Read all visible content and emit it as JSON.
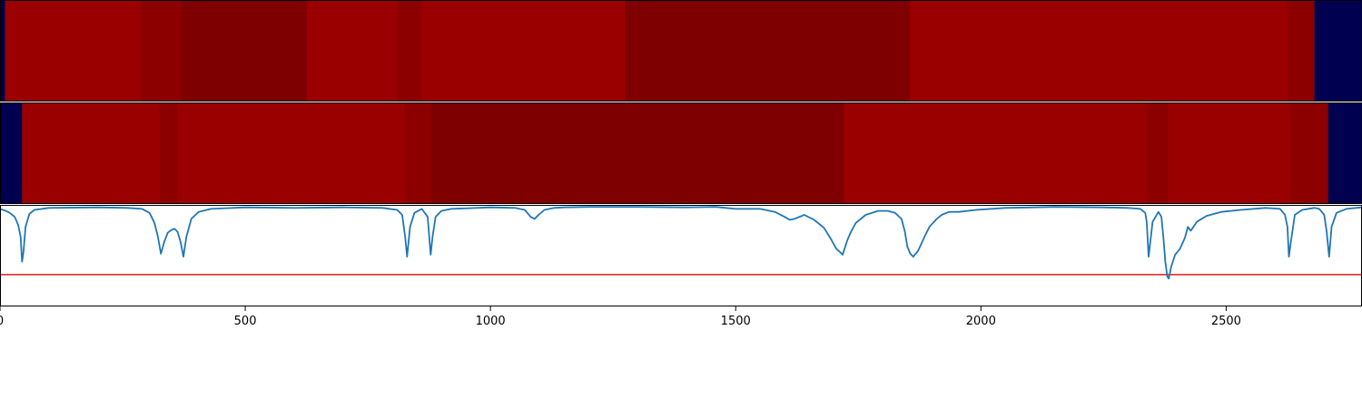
{
  "chart_data": {
    "panels": [
      {
        "type": "heatmap",
        "colormap": "seismic",
        "background_color": "#000050",
        "segments": [
          {
            "start": 0,
            "end": 10,
            "color": "#000050"
          },
          {
            "start": 10,
            "end": 288,
            "color": "#9a0000"
          },
          {
            "start": 288,
            "end": 370,
            "color": "#8c0000"
          },
          {
            "start": 370,
            "end": 625,
            "color": "#7e0000"
          },
          {
            "start": 625,
            "end": 810,
            "color": "#9a0000"
          },
          {
            "start": 810,
            "end": 860,
            "color": "#8c0000"
          },
          {
            "start": 860,
            "end": 1275,
            "color": "#9a0000"
          },
          {
            "start": 1275,
            "end": 1855,
            "color": "#7e0000"
          },
          {
            "start": 1855,
            "end": 2625,
            "color": "#9a0000"
          },
          {
            "start": 2625,
            "end": 2680,
            "color": "#8c0000"
          },
          {
            "start": 2680,
            "end": 2777,
            "color": "#000050"
          }
        ]
      },
      {
        "type": "heatmap",
        "colormap": "seismic",
        "background_color": "#000050",
        "segments": [
          {
            "start": 0,
            "end": 45,
            "color": "#000050"
          },
          {
            "start": 45,
            "end": 325,
            "color": "#9a0000"
          },
          {
            "start": 325,
            "end": 362,
            "color": "#8c0000"
          },
          {
            "start": 362,
            "end": 825,
            "color": "#9a0000"
          },
          {
            "start": 825,
            "end": 880,
            "color": "#8c0000"
          },
          {
            "start": 880,
            "end": 1720,
            "color": "#7e0000"
          },
          {
            "start": 1720,
            "end": 2338,
            "color": "#9a0000"
          },
          {
            "start": 2338,
            "end": 2382,
            "color": "#8c0000"
          },
          {
            "start": 2382,
            "end": 2630,
            "color": "#9a0000"
          },
          {
            "start": 2630,
            "end": 2708,
            "color": "#8c0000"
          },
          {
            "start": 2708,
            "end": 2777,
            "color": "#000050"
          }
        ]
      },
      {
        "type": "line",
        "xlim": [
          0,
          2777
        ],
        "ylim": [
          -1.0,
          0.02
        ],
        "xticks": [
          0,
          500,
          1000,
          1500,
          2000,
          2500
        ],
        "xtick_labels": [
          "0",
          "500",
          "1000",
          "1500",
          "2000",
          "2500"
        ],
        "grid": false,
        "threshold": {
          "y": -0.68,
          "color": "#e41a1c"
        },
        "series": [
          {
            "color": "#1f77b4",
            "x": [
              0,
              12,
              20,
              30,
              37,
              42,
              45,
              48,
              52,
              60,
              70,
              100,
              200,
              260,
              290,
              305,
              315,
              322,
              328,
              335,
              342,
              350,
              356,
              362,
              368,
              374,
              380,
              390,
              405,
              430,
              500,
              600,
              700,
              780,
              810,
              820,
              826,
              830,
              836,
              845,
              860,
              872,
              878,
              882,
              888,
              900,
              920,
              1000,
              1050,
              1070,
              1082,
              1090,
              1098,
              1110,
              1130,
              1150,
              1200,
              1300,
              1400,
              1460,
              1480,
              1500,
              1550,
              1580,
              1600,
              1610,
              1620,
              1640,
              1660,
              1680,
              1695,
              1705,
              1712,
              1718,
              1722,
              1728,
              1735,
              1745,
              1765,
              1790,
              1810,
              1825,
              1838,
              1845,
              1850,
              1856,
              1862,
              1872,
              1885,
              1895,
              1910,
              1920,
              1935,
              1955,
              1990,
              2050,
              2150,
              2250,
              2300,
              2325,
              2335,
              2338,
              2342,
              2350,
              2362,
              2368,
              2372,
              2376,
              2380,
              2383,
              2388,
              2396,
              2406,
              2416,
              2422,
              2428,
              2440,
              2460,
              2490,
              2530,
              2580,
              2610,
              2620,
              2625,
              2628,
              2632,
              2640,
              2655,
              2680,
              2690,
              2700,
              2705,
              2710,
              2715,
              2725,
              2745,
              2777
            ],
            "y": [
              -0.02,
              -0.04,
              -0.06,
              -0.1,
              -0.18,
              -0.3,
              -0.55,
              -0.45,
              -0.2,
              -0.07,
              -0.03,
              -0.01,
              -0.005,
              -0.01,
              -0.02,
              -0.06,
              -0.16,
              -0.3,
              -0.47,
              -0.35,
              -0.26,
              -0.23,
              -0.22,
              -0.25,
              -0.35,
              -0.5,
              -0.3,
              -0.12,
              -0.05,
              -0.02,
              -0.005,
              -0.01,
              -0.005,
              -0.01,
              -0.03,
              -0.08,
              -0.3,
              -0.5,
              -0.2,
              -0.06,
              -0.02,
              -0.1,
              -0.48,
              -0.3,
              -0.1,
              -0.04,
              -0.02,
              -0.005,
              -0.01,
              -0.03,
              -0.1,
              -0.12,
              -0.08,
              -0.03,
              -0.01,
              -0.005,
              0.0,
              0.0,
              -0.005,
              0.0,
              -0.01,
              -0.02,
              -0.02,
              -0.05,
              -0.1,
              -0.13,
              -0.12,
              -0.08,
              -0.13,
              -0.21,
              -0.33,
              -0.42,
              -0.45,
              -0.48,
              -0.42,
              -0.33,
              -0.25,
              -0.16,
              -0.08,
              -0.04,
              -0.04,
              -0.06,
              -0.12,
              -0.25,
              -0.4,
              -0.47,
              -0.5,
              -0.44,
              -0.3,
              -0.2,
              -0.12,
              -0.08,
              -0.05,
              -0.05,
              -0.03,
              -0.01,
              0.0,
              -0.005,
              -0.01,
              -0.02,
              -0.06,
              -0.15,
              -0.5,
              -0.15,
              -0.05,
              -0.1,
              -0.3,
              -0.55,
              -0.7,
              -0.72,
              -0.6,
              -0.48,
              -0.42,
              -0.31,
              -0.2,
              -0.24,
              -0.15,
              -0.09,
              -0.05,
              -0.03,
              -0.01,
              -0.02,
              -0.08,
              -0.2,
              -0.5,
              -0.35,
              -0.08,
              -0.03,
              -0.01,
              -0.02,
              -0.08,
              -0.25,
              -0.5,
              -0.2,
              -0.06,
              -0.02,
              -0.005
            ]
          }
        ]
      }
    ]
  }
}
